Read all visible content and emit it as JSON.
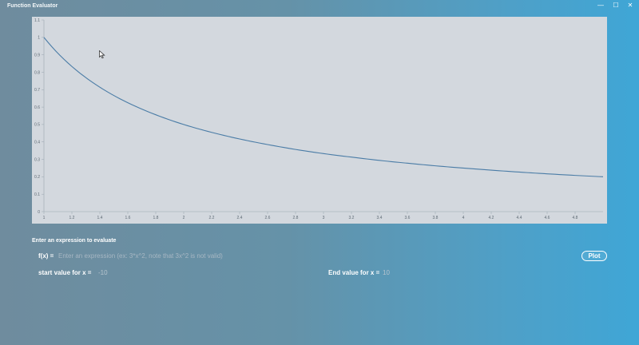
{
  "window": {
    "title": "Function Evaluator",
    "controls": {
      "minimize": "—",
      "maximize": "☐",
      "close": "✕"
    }
  },
  "colors": {
    "plot_background": "#d3d8de",
    "line": "#4a7ca6",
    "accent": "#ffffff"
  },
  "chart_data": {
    "type": "line",
    "title": "",
    "xlabel": "",
    "ylabel": "",
    "xlim": [
      1,
      5
    ],
    "ylim": [
      0,
      1.1
    ],
    "x_ticks": [
      "1",
      "1.2",
      "1.4",
      "1.6",
      "1.8",
      "2",
      "2.2",
      "2.4",
      "2.6",
      "2.8",
      "3",
      "3.2",
      "3.4",
      "3.6",
      "3.8",
      "4",
      "4.2",
      "4.4",
      "4.6",
      "4.8"
    ],
    "y_ticks": [
      "0",
      "0.1",
      "0.2",
      "0.3",
      "0.4",
      "0.5",
      "0.6",
      "0.7",
      "0.8",
      "0.9",
      "1",
      "1.1"
    ],
    "grid": false,
    "series": [
      {
        "color": "#4a7ca6",
        "x": [
          1,
          1.2,
          1.4,
          1.6,
          1.8,
          2,
          2.2,
          2.4,
          2.6,
          2.8,
          3,
          3.2,
          3.4,
          3.6,
          3.8,
          4,
          4.2,
          4.4,
          4.6,
          4.8,
          5
        ],
        "values": [
          1,
          0.833,
          0.714,
          0.625,
          0.556,
          0.5,
          0.455,
          0.417,
          0.385,
          0.357,
          0.333,
          0.313,
          0.294,
          0.278,
          0.263,
          0.25,
          0.238,
          0.227,
          0.217,
          0.208,
          0.2
        ]
      }
    ]
  },
  "form": {
    "section_label": "Enter an expression to evaluate",
    "fx_label": "f(x) =",
    "fx_value": "",
    "fx_placeholder": "Enter an expression (ex: 3*x^2, note that 3x^2 is not valid)",
    "plot_label": "Plot",
    "start_label": "start value for x =",
    "start_value": "-10",
    "end_label": "End value for x =",
    "end_value": "10"
  }
}
